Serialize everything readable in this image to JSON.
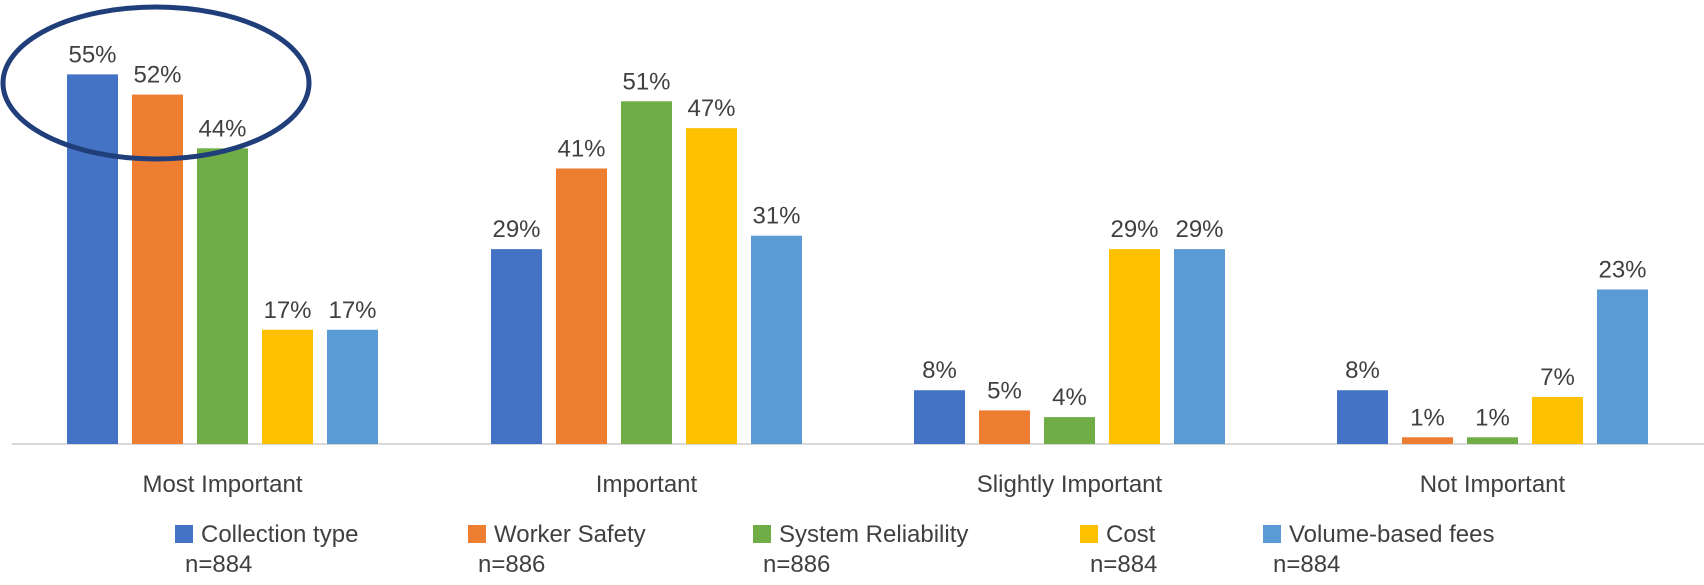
{
  "chart_data": {
    "type": "bar",
    "title": "",
    "xlabel": "",
    "ylabel": "",
    "ylim": [
      0,
      60
    ],
    "grid": false,
    "legend_position": "bottom",
    "categories": [
      "Most Important",
      "Important",
      "Slightly Important",
      "Not Important"
    ],
    "series": [
      {
        "name": "Collection type",
        "n_label": "n=884",
        "color": "#4472C4",
        "values": [
          55,
          29,
          8,
          8
        ],
        "labels": [
          "55%",
          "29%",
          "8%",
          "8%"
        ]
      },
      {
        "name": "Worker Safety",
        "n_label": "n=886",
        "color": "#ED7D31",
        "values": [
          52,
          41,
          5,
          1
        ],
        "labels": [
          "52%",
          "41%",
          "5%",
          "1%"
        ]
      },
      {
        "name": "System Reliability",
        "n_label": "n=886",
        "color": "#70AD47",
        "values": [
          44,
          51,
          4,
          1
        ],
        "labels": [
          "44%",
          "51%",
          "4%",
          "1%"
        ]
      },
      {
        "name": "Cost",
        "n_label": "n=884",
        "color": "#FFC000",
        "values": [
          17,
          47,
          29,
          7
        ],
        "labels": [
          "17%",
          "47%",
          "29%",
          "7%"
        ]
      },
      {
        "name": "Volume-based fees",
        "n_label": "n=884",
        "color": "#5B9BD5",
        "values": [
          17,
          31,
          29,
          23
        ],
        "labels": [
          "17%",
          "31%",
          "29%",
          "23%"
        ]
      }
    ],
    "annotation": {
      "type": "ellipse",
      "target_category": "Most Important",
      "color": "#203F7A"
    }
  }
}
